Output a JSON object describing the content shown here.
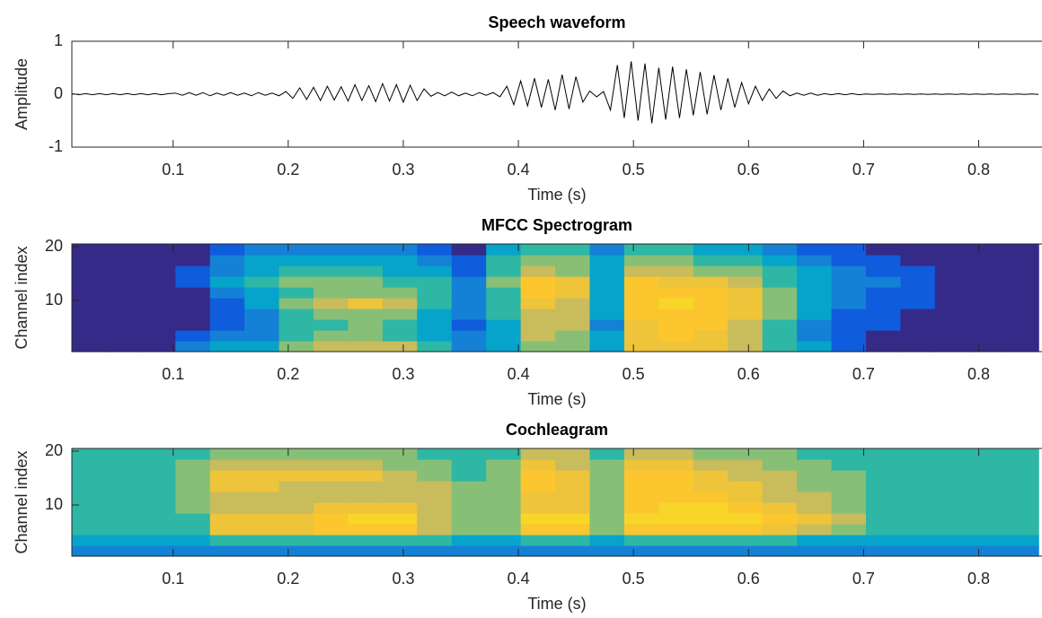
{
  "chart_data": [
    {
      "type": "line",
      "title": "Speech waveform",
      "xlabel": "Time (s)",
      "ylabel": "Amplitude",
      "color": "#000000",
      "xlim": [
        0.012,
        0.855
      ],
      "xticks": [
        0.1,
        0.2,
        0.3,
        0.4,
        0.5,
        0.6,
        0.7,
        0.8
      ],
      "ylim": [
        -1,
        1
      ],
      "yticks": [
        -1,
        0,
        1
      ],
      "x": [
        0.012,
        0.018,
        0.024,
        0.03,
        0.036,
        0.042,
        0.048,
        0.054,
        0.06,
        0.066,
        0.072,
        0.078,
        0.084,
        0.09,
        0.096,
        0.102,
        0.108,
        0.114,
        0.12,
        0.126,
        0.132,
        0.138,
        0.144,
        0.15,
        0.156,
        0.162,
        0.168,
        0.174,
        0.18,
        0.186,
        0.192,
        0.198,
        0.204,
        0.21,
        0.216,
        0.222,
        0.228,
        0.234,
        0.24,
        0.246,
        0.252,
        0.258,
        0.264,
        0.27,
        0.276,
        0.282,
        0.288,
        0.294,
        0.3,
        0.306,
        0.312,
        0.318,
        0.324,
        0.33,
        0.336,
        0.342,
        0.348,
        0.354,
        0.36,
        0.366,
        0.372,
        0.378,
        0.384,
        0.39,
        0.396,
        0.402,
        0.408,
        0.414,
        0.42,
        0.426,
        0.432,
        0.438,
        0.444,
        0.45,
        0.456,
        0.462,
        0.468,
        0.474,
        0.48,
        0.486,
        0.492,
        0.498,
        0.504,
        0.51,
        0.516,
        0.522,
        0.528,
        0.534,
        0.54,
        0.546,
        0.552,
        0.558,
        0.564,
        0.57,
        0.576,
        0.582,
        0.588,
        0.594,
        0.6,
        0.606,
        0.612,
        0.618,
        0.624,
        0.63,
        0.636,
        0.642,
        0.648,
        0.654,
        0.66,
        0.666,
        0.672,
        0.678,
        0.684,
        0.69,
        0.696,
        0.702,
        0.708,
        0.714,
        0.72,
        0.726,
        0.732,
        0.738,
        0.744,
        0.75,
        0.756,
        0.762,
        0.768,
        0.774,
        0.78,
        0.786,
        0.792,
        0.798,
        0.804,
        0.81,
        0.816,
        0.822,
        0.828,
        0.834,
        0.84,
        0.846,
        0.852
      ],
      "values": [
        0.01,
        -0.01,
        0.01,
        -0.01,
        0.01,
        -0.01,
        0.01,
        -0.01,
        0.01,
        -0.01,
        0.01,
        -0.01,
        0.01,
        -0.01,
        0.01,
        0.02,
        -0.02,
        0.03,
        -0.02,
        0.03,
        -0.03,
        0.02,
        -0.02,
        0.03,
        -0.02,
        0.02,
        -0.03,
        0.03,
        -0.02,
        0.02,
        -0.03,
        0.05,
        -0.08,
        0.12,
        -0.1,
        0.13,
        -0.12,
        0.15,
        -0.11,
        0.14,
        -0.13,
        0.18,
        -0.12,
        0.16,
        -0.14,
        0.2,
        -0.13,
        0.18,
        -0.15,
        0.17,
        -0.12,
        0.1,
        -0.04,
        0.03,
        -0.03,
        0.04,
        -0.03,
        0.02,
        -0.03,
        0.03,
        -0.02,
        0.03,
        -0.05,
        0.15,
        -0.2,
        0.25,
        -0.22,
        0.3,
        -0.25,
        0.28,
        -0.3,
        0.37,
        -0.28,
        0.33,
        -0.15,
        0.06,
        -0.05,
        0.05,
        -0.3,
        0.55,
        -0.45,
        0.62,
        -0.5,
        0.58,
        -0.55,
        0.5,
        -0.48,
        0.52,
        -0.45,
        0.47,
        -0.4,
        0.42,
        -0.38,
        0.36,
        -0.3,
        0.3,
        -0.25,
        0.22,
        -0.18,
        0.15,
        -0.12,
        0.1,
        -0.08,
        0.06,
        -0.03,
        0.02,
        -0.02,
        0.02,
        -0.02,
        0.01,
        -0.01,
        0.01,
        -0.01,
        0.01,
        -0.01,
        0.005,
        -0.005,
        0.005,
        -0.005,
        0.005,
        -0.005,
        0.005,
        -0.005,
        0.005,
        -0.005,
        0.005,
        -0.005,
        0.005,
        -0.005,
        0.005,
        -0.005,
        0.005,
        -0.005,
        0.005,
        -0.005,
        0.005,
        -0.005,
        0.005,
        -0.005,
        0.005,
        -0.005
      ]
    },
    {
      "type": "heatmap",
      "title": "MFCC Spectrogram",
      "xlabel": "Time (s)",
      "ylabel": "Channel index",
      "xlim": [
        0.012,
        0.855
      ],
      "xticks": [
        0.1,
        0.2,
        0.3,
        0.4,
        0.5,
        0.6,
        0.7,
        0.8
      ],
      "ylim": [
        0.5,
        20.5
      ],
      "yticks": [
        10,
        20
      ],
      "clim": [
        0,
        9
      ],
      "colormap": [
        "#352a87",
        "#0f5cdd",
        "#1481d6",
        "#06a4ca",
        "#2eb7a4",
        "#87bf77",
        "#c8bc5c",
        "#eec43a",
        "#fcc62f",
        "#f8d629"
      ],
      "xbins": [
        0.012,
        0.042,
        0.072,
        0.102,
        0.132,
        0.162,
        0.192,
        0.222,
        0.252,
        0.282,
        0.312,
        0.342,
        0.372,
        0.402,
        0.432,
        0.462,
        0.492,
        0.522,
        0.552,
        0.582,
        0.612,
        0.642,
        0.672,
        0.702,
        0.732,
        0.762,
        0.792,
        0.822,
        0.852
      ],
      "ybins": [
        0.5,
        2.5,
        4.5,
        6.5,
        8.5,
        10.5,
        12.5,
        14.5,
        16.5,
        18.5,
        20.5
      ],
      "z": [
        [
          0,
          0,
          0,
          2,
          3,
          3,
          5,
          6,
          6,
          6,
          4,
          2,
          3,
          5,
          5,
          3,
          7,
          7,
          7,
          6,
          4,
          3,
          1,
          0,
          0,
          0,
          0,
          0
        ],
        [
          0,
          0,
          0,
          1,
          2,
          2,
          4,
          5,
          5,
          4,
          3,
          2,
          3,
          6,
          5,
          3,
          7,
          8,
          7,
          6,
          4,
          2,
          1,
          0,
          0,
          0,
          0,
          0
        ],
        [
          0,
          0,
          0,
          0,
          1,
          2,
          4,
          4,
          5,
          4,
          3,
          1,
          3,
          6,
          6,
          2,
          7,
          8,
          8,
          6,
          4,
          2,
          1,
          1,
          0,
          0,
          0,
          0
        ],
        [
          0,
          0,
          0,
          0,
          1,
          2,
          4,
          5,
          5,
          5,
          3,
          2,
          4,
          6,
          6,
          3,
          8,
          8,
          8,
          7,
          5,
          3,
          1,
          1,
          0,
          0,
          0,
          0
        ],
        [
          0,
          0,
          0,
          0,
          1,
          3,
          5,
          6,
          7,
          6,
          4,
          2,
          4,
          7,
          6,
          3,
          8,
          9,
          8,
          7,
          5,
          3,
          2,
          1,
          1,
          0,
          0,
          0
        ],
        [
          0,
          0,
          0,
          0,
          2,
          3,
          4,
          5,
          5,
          5,
          4,
          2,
          4,
          8,
          7,
          3,
          8,
          8,
          8,
          7,
          5,
          3,
          2,
          1,
          1,
          0,
          0,
          0
        ],
        [
          0,
          0,
          0,
          1,
          3,
          4,
          5,
          5,
          5,
          4,
          4,
          2,
          5,
          8,
          7,
          3,
          8,
          7,
          7,
          6,
          4,
          3,
          2,
          2,
          1,
          0,
          0,
          0
        ],
        [
          0,
          0,
          0,
          1,
          2,
          3,
          4,
          4,
          4,
          3,
          3,
          1,
          4,
          6,
          5,
          3,
          6,
          6,
          5,
          5,
          4,
          3,
          2,
          1,
          1,
          0,
          0,
          0
        ],
        [
          0,
          0,
          0,
          0,
          2,
          3,
          3,
          3,
          3,
          3,
          2,
          1,
          4,
          5,
          5,
          3,
          5,
          5,
          4,
          4,
          3,
          2,
          1,
          1,
          0,
          0,
          0,
          0
        ],
        [
          0,
          0,
          0,
          0,
          1,
          2,
          2,
          2,
          2,
          2,
          1,
          0,
          3,
          4,
          4,
          2,
          4,
          4,
          3,
          3,
          2,
          1,
          1,
          0,
          0,
          0,
          0,
          0
        ]
      ]
    },
    {
      "type": "heatmap",
      "title": "Cochleagram",
      "xlabel": "Time (s)",
      "ylabel": "Channel index",
      "xlim": [
        0.012,
        0.855
      ],
      "xticks": [
        0.1,
        0.2,
        0.3,
        0.4,
        0.5,
        0.6,
        0.7,
        0.8
      ],
      "ylim": [
        0.5,
        20.5
      ],
      "yticks": [
        10,
        20
      ],
      "clim": [
        0,
        9
      ],
      "colormap": [
        "#352a87",
        "#0f5cdd",
        "#1481d6",
        "#06a4ca",
        "#2eb7a4",
        "#87bf77",
        "#c8bc5c",
        "#eec43a",
        "#fcc62f",
        "#f8d629"
      ],
      "xbins": [
        0.012,
        0.042,
        0.072,
        0.102,
        0.132,
        0.162,
        0.192,
        0.222,
        0.252,
        0.282,
        0.312,
        0.342,
        0.372,
        0.402,
        0.432,
        0.462,
        0.492,
        0.522,
        0.552,
        0.582,
        0.612,
        0.642,
        0.672,
        0.702,
        0.732,
        0.762,
        0.792,
        0.822,
        0.852
      ],
      "ybins": [
        0.5,
        2.5,
        4.5,
        6.5,
        8.5,
        10.5,
        12.5,
        14.5,
        16.5,
        18.5,
        20.5
      ],
      "z": [
        [
          2,
          2,
          2,
          2,
          2,
          2,
          2,
          2,
          2,
          2,
          2,
          2,
          2,
          2,
          2,
          2,
          2,
          2,
          2,
          2,
          2,
          2,
          2,
          2,
          2,
          2,
          2,
          2
        ],
        [
          3,
          3,
          3,
          3,
          4,
          4,
          4,
          4,
          4,
          4,
          4,
          3,
          3,
          4,
          4,
          3,
          4,
          4,
          4,
          4,
          4,
          3,
          3,
          3,
          3,
          3,
          3,
          3
        ],
        [
          4,
          4,
          4,
          4,
          7,
          7,
          7,
          8,
          8,
          8,
          6,
          5,
          5,
          8,
          8,
          5,
          8,
          8,
          8,
          8,
          7,
          6,
          5,
          4,
          4,
          4,
          4,
          4
        ],
        [
          4,
          4,
          4,
          4,
          7,
          7,
          7,
          8,
          9,
          9,
          6,
          5,
          5,
          9,
          9,
          5,
          9,
          9,
          9,
          9,
          8,
          7,
          6,
          4,
          4,
          4,
          4,
          4
        ],
        [
          4,
          4,
          4,
          5,
          6,
          6,
          6,
          7,
          7,
          7,
          6,
          5,
          5,
          7,
          7,
          5,
          8,
          9,
          9,
          8,
          7,
          6,
          5,
          4,
          4,
          4,
          4,
          4
        ],
        [
          4,
          4,
          4,
          5,
          6,
          6,
          6,
          6,
          6,
          6,
          6,
          5,
          5,
          7,
          7,
          5,
          8,
          8,
          8,
          7,
          6,
          6,
          5,
          4,
          4,
          4,
          4,
          4
        ],
        [
          4,
          4,
          4,
          5,
          7,
          7,
          6,
          6,
          6,
          6,
          6,
          5,
          5,
          8,
          7,
          5,
          8,
          8,
          7,
          7,
          6,
          5,
          5,
          4,
          4,
          4,
          4,
          4
        ],
        [
          4,
          4,
          4,
          5,
          7,
          7,
          7,
          7,
          7,
          6,
          5,
          4,
          5,
          8,
          7,
          5,
          8,
          8,
          7,
          6,
          6,
          5,
          5,
          4,
          4,
          4,
          4,
          4
        ],
        [
          4,
          4,
          4,
          5,
          6,
          6,
          6,
          6,
          6,
          5,
          5,
          4,
          5,
          7,
          6,
          5,
          7,
          7,
          6,
          6,
          5,
          5,
          4,
          4,
          4,
          4,
          4,
          4
        ],
        [
          4,
          4,
          4,
          4,
          5,
          5,
          5,
          5,
          5,
          5,
          4,
          4,
          4,
          6,
          6,
          4,
          6,
          6,
          5,
          5,
          5,
          4,
          4,
          4,
          4,
          4,
          4,
          4
        ]
      ]
    }
  ]
}
